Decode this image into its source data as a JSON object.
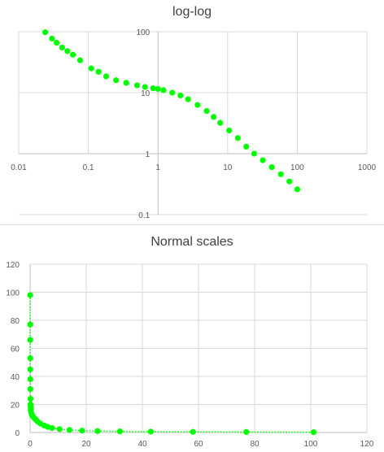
{
  "chart_data": [
    {
      "type": "scatter",
      "title": "log-log",
      "x_scale": "log",
      "y_scale": "log",
      "xlim": [
        0.01,
        1000
      ],
      "ylim": [
        0.1,
        100
      ],
      "x_ticks": [
        "0.01",
        "0.1",
        "1",
        "10",
        "100",
        "1000"
      ],
      "y_ticks": [
        "0.1",
        "1",
        "10",
        "100"
      ],
      "grid": true,
      "color": "#00ff00",
      "points": [
        [
          0.024,
          98
        ],
        [
          0.03,
          77
        ],
        [
          0.035,
          66
        ],
        [
          0.042,
          55
        ],
        [
          0.05,
          48
        ],
        [
          0.06,
          42
        ],
        [
          0.076,
          34
        ],
        [
          0.11,
          25
        ],
        [
          0.14,
          22
        ],
        [
          0.18,
          18.5
        ],
        [
          0.25,
          16
        ],
        [
          0.35,
          14.5
        ],
        [
          0.5,
          13.2
        ],
        [
          0.65,
          12.4
        ],
        [
          0.85,
          11.8
        ],
        [
          1.0,
          11.5
        ],
        [
          1.2,
          11
        ],
        [
          1.6,
          10
        ],
        [
          2.1,
          9
        ],
        [
          2.7,
          7.8
        ],
        [
          3.7,
          6.3
        ],
        [
          5.0,
          5.0
        ],
        [
          6.3,
          4.0
        ],
        [
          7.8,
          3.2
        ],
        [
          10.5,
          2.4
        ],
        [
          14,
          1.8
        ],
        [
          18.5,
          1.3
        ],
        [
          24,
          1.0
        ],
        [
          32,
          0.78
        ],
        [
          43,
          0.6
        ],
        [
          58,
          0.46
        ],
        [
          77,
          0.35
        ],
        [
          100,
          0.26
        ]
      ]
    },
    {
      "type": "scatter",
      "title": "Normal scales",
      "x_scale": "linear",
      "y_scale": "linear",
      "xlim": [
        0,
        120
      ],
      "ylim": [
        0,
        120
      ],
      "x_ticks": [
        "0",
        "20",
        "40",
        "60",
        "80",
        "100",
        "120"
      ],
      "y_ticks": [
        "0",
        "20",
        "40",
        "60",
        "80",
        "100",
        "120"
      ],
      "grid": true,
      "color": "#00ff00",
      "connector": "dotted",
      "points": [
        [
          0.024,
          98
        ],
        [
          0.03,
          77
        ],
        [
          0.035,
          66
        ],
        [
          0.042,
          53
        ],
        [
          0.05,
          45
        ],
        [
          0.06,
          38
        ],
        [
          0.076,
          31
        ],
        [
          0.11,
          24
        ],
        [
          0.14,
          20
        ],
        [
          0.18,
          18
        ],
        [
          0.25,
          16
        ],
        [
          0.35,
          14.5
        ],
        [
          0.5,
          13.2
        ],
        [
          0.65,
          12.4
        ],
        [
          0.85,
          11.8
        ],
        [
          1.0,
          11.5
        ],
        [
          1.2,
          11
        ],
        [
          1.6,
          10
        ],
        [
          2.1,
          9
        ],
        [
          2.7,
          7.8
        ],
        [
          3.7,
          6.3
        ],
        [
          5.0,
          5.0
        ],
        [
          6.3,
          4.0
        ],
        [
          7.8,
          3.2
        ],
        [
          10.5,
          2.4
        ],
        [
          14,
          1.8
        ],
        [
          18.5,
          1.3
        ],
        [
          24,
          1.0
        ],
        [
          32,
          0.78
        ],
        [
          43,
          0.6
        ],
        [
          58,
          0.46
        ],
        [
          77,
          0.35
        ],
        [
          101,
          0.26
        ]
      ]
    }
  ]
}
